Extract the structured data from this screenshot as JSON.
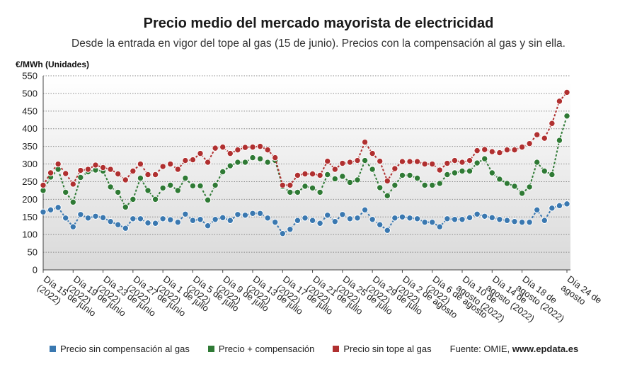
{
  "header": {
    "title": "Precio medio del mercado mayorista de electricidad",
    "subtitle": "Desde la entrada en vigor del tope al gas (15 de junio). Precios con la compensación al gas y sin ella."
  },
  "source": {
    "label": "Fuente: OMIE, ",
    "site": "www.epdata.es"
  },
  "chart_data": {
    "type": "line",
    "unit_label": "€/MWh (Unidades)",
    "ylim": [
      0,
      550
    ],
    "yticks": [
      0,
      50,
      100,
      150,
      200,
      250,
      300,
      350,
      400,
      450,
      500,
      550
    ],
    "grid": true,
    "legend_position": "bottom",
    "x_tick_labels": [
      {
        "index": 0,
        "label": "Día 15 de junio (2022)"
      },
      {
        "index": 4,
        "label": "Día 19 de junio (2022)"
      },
      {
        "index": 8,
        "label": "Día 23 de junio (2022)"
      },
      {
        "index": 12,
        "label": "Día 27 de junio (2022)"
      },
      {
        "index": 16,
        "label": "Día 1 de julio (2022)"
      },
      {
        "index": 20,
        "label": "Día 5 de julio (2022)"
      },
      {
        "index": 24,
        "label": "Día 9 de julio (2022)"
      },
      {
        "index": 28,
        "label": "Día 13 de julio (2022)"
      },
      {
        "index": 32,
        "label": "Día 17 de julio (2022)"
      },
      {
        "index": 36,
        "label": "Día 21 de julio (2022)"
      },
      {
        "index": 40,
        "label": "Día 25 de julio (2022)"
      },
      {
        "index": 44,
        "label": "Día 29 de julio (2022)"
      },
      {
        "index": 48,
        "label": "Día 2 de agosto (2022)"
      },
      {
        "index": 52,
        "label": "Día 6 de agosto (2022)"
      },
      {
        "index": 56,
        "label": "Día 10 de agosto (2022)"
      },
      {
        "index": 60,
        "label": "Día 14 de agosto (2022)"
      },
      {
        "index": 64,
        "label": "Día 18 de agosto (2022)"
      },
      {
        "index": 70,
        "label": "Día 24 de agosto"
      }
    ],
    "series": [
      {
        "name": "Precio sin compensación al gas",
        "color": "#3a78b0",
        "values": [
          164,
          170,
          177,
          147,
          122,
          157,
          147,
          152,
          148,
          137,
          128,
          118,
          145,
          145,
          133,
          132,
          145,
          142,
          135,
          158,
          140,
          143,
          125,
          143,
          148,
          140,
          157,
          155,
          160,
          160,
          147,
          135,
          103,
          115,
          140,
          147,
          140,
          132,
          155,
          137,
          157,
          145,
          147,
          170,
          143,
          128,
          112,
          147,
          150,
          147,
          145,
          135,
          135,
          122,
          145,
          143,
          143,
          148,
          158,
          152,
          148,
          143,
          140,
          137,
          135,
          135,
          170,
          140,
          175,
          182,
          187
        ]
      },
      {
        "name": "Precio + compensación",
        "color": "#2f7a35",
        "values": [
          225,
          263,
          285,
          220,
          192,
          262,
          278,
          283,
          280,
          235,
          220,
          178,
          200,
          260,
          225,
          200,
          232,
          240,
          225,
          260,
          238,
          238,
          198,
          240,
          278,
          295,
          305,
          305,
          318,
          315,
          305,
          310,
          236,
          220,
          220,
          237,
          232,
          220,
          270,
          258,
          265,
          248,
          255,
          310,
          285,
          233,
          210,
          240,
          268,
          268,
          260,
          240,
          240,
          245,
          270,
          275,
          280,
          280,
          303,
          315,
          275,
          257,
          245,
          237,
          217,
          235,
          305,
          280,
          270,
          367,
          436
        ]
      },
      {
        "name": "Precio sin tope al gas",
        "color": "#b03030",
        "values": [
          240,
          275,
          300,
          273,
          243,
          282,
          285,
          297,
          290,
          285,
          272,
          255,
          280,
          300,
          270,
          270,
          293,
          300,
          285,
          310,
          312,
          330,
          305,
          345,
          348,
          330,
          340,
          347,
          348,
          350,
          340,
          318,
          240,
          240,
          268,
          272,
          272,
          268,
          308,
          285,
          302,
          305,
          310,
          362,
          330,
          308,
          252,
          287,
          307,
          307,
          307,
          300,
          300,
          283,
          302,
          310,
          305,
          310,
          338,
          341,
          335,
          332,
          340,
          340,
          348,
          358,
          383,
          373,
          415,
          478,
          503
        ]
      }
    ]
  }
}
